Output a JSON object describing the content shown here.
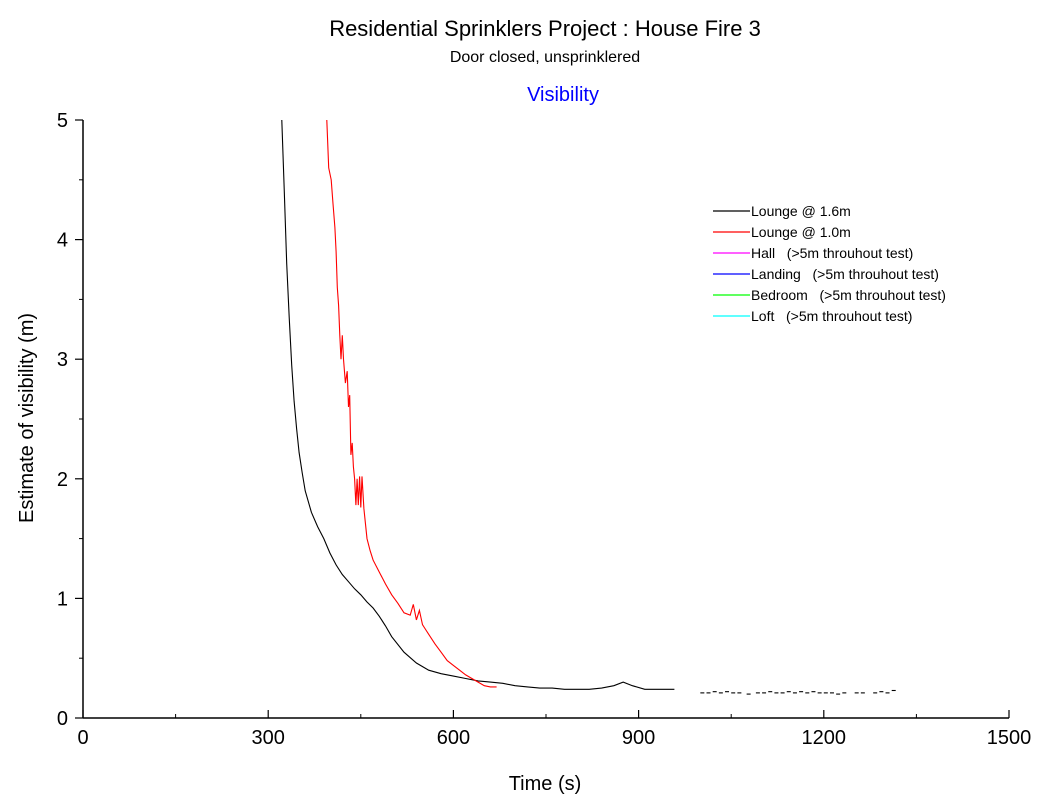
{
  "chart_data": {
    "type": "line",
    "title": "Residential Sprinklers Project : House Fire 3",
    "subtitle": "Door closed, unsprinklered",
    "panel_title": "Visibility",
    "panel_title_color": "#0000ff",
    "xlabel": "Time (s)",
    "ylabel": "Estimate of visibility (m)",
    "xlim": [
      0,
      1500
    ],
    "ylim": [
      0,
      5
    ],
    "x_ticks": [
      "0",
      "300",
      "600",
      "900",
      "1200",
      "1500"
    ],
    "y_ticks": [
      "0",
      "1",
      "2",
      "3",
      "4",
      "5"
    ],
    "grid": false,
    "legend_position": "top-right",
    "series": [
      {
        "name": "Lounge @ 1.6m",
        "color": "#000000",
        "x": [
          322,
          326,
          330,
          334,
          338,
          342,
          346,
          350,
          355,
          360,
          370,
          380,
          390,
          400,
          410,
          420,
          430,
          440,
          450,
          460,
          470,
          480,
          490,
          500,
          520,
          540,
          560,
          580,
          600,
          620,
          640,
          660,
          680,
          700,
          720,
          740,
          760,
          780,
          800,
          820,
          840,
          860,
          875,
          890,
          910,
          930,
          958
        ],
        "y": [
          5.0,
          4.4,
          3.8,
          3.35,
          2.95,
          2.65,
          2.42,
          2.22,
          2.05,
          1.9,
          1.72,
          1.6,
          1.5,
          1.38,
          1.28,
          1.2,
          1.14,
          1.08,
          1.03,
          0.97,
          0.92,
          0.85,
          0.77,
          0.68,
          0.55,
          0.46,
          0.4,
          0.37,
          0.35,
          0.33,
          0.31,
          0.3,
          0.29,
          0.27,
          0.26,
          0.25,
          0.25,
          0.24,
          0.24,
          0.24,
          0.25,
          0.27,
          0.3,
          0.27,
          0.24,
          0.24,
          0.24
        ]
      },
      {
        "name": "Lounge @ 1.0m",
        "color": "#ff0000",
        "x": [
          395,
          398,
          402,
          405,
          408,
          410,
          412,
          414,
          416,
          418,
          420,
          422,
          425,
          428,
          430,
          432,
          434,
          436,
          438,
          440,
          442,
          444,
          446,
          448,
          450,
          452,
          455,
          460,
          465,
          470,
          480,
          490,
          500,
          510,
          520,
          530,
          535,
          540,
          545,
          550,
          555,
          560,
          570,
          580,
          590,
          600,
          610,
          620,
          630,
          640,
          650,
          660,
          670
        ],
        "y": [
          5.0,
          4.6,
          4.5,
          4.3,
          4.1,
          3.9,
          3.6,
          3.45,
          3.2,
          3.0,
          3.2,
          3.0,
          2.8,
          2.9,
          2.6,
          2.7,
          2.2,
          2.3,
          2.1,
          2.0,
          1.78,
          2.0,
          1.78,
          2.02,
          1.76,
          2.02,
          1.75,
          1.5,
          1.4,
          1.32,
          1.22,
          1.12,
          1.03,
          0.96,
          0.88,
          0.86,
          0.95,
          0.82,
          0.9,
          0.78,
          0.74,
          0.7,
          0.62,
          0.55,
          0.48,
          0.44,
          0.4,
          0.36,
          0.33,
          0.3,
          0.27,
          0.26,
          0.26
        ]
      },
      {
        "name": "Hall   (>5m throuhout test)",
        "color": "#ff00ff",
        "x": [],
        "y": []
      },
      {
        "name": "Landing   (>5m throuhout test)",
        "color": "#0000ff",
        "x": [],
        "y": []
      },
      {
        "name": "Bedroom   (>5m throuhout test)",
        "color": "#00ff00",
        "x": [],
        "y": []
      },
      {
        "name": "Loft   (>5m throuhout test)",
        "color": "#00ffff",
        "x": [],
        "y": []
      }
    ],
    "sparse_segments": {
      "color": "#000000",
      "x": [
        1000,
        1010,
        1020,
        1030,
        1040,
        1050,
        1060,
        1075,
        1090,
        1100,
        1110,
        1120,
        1130,
        1140,
        1150,
        1160,
        1170,
        1180,
        1190,
        1200,
        1210,
        1220,
        1230,
        1250,
        1260,
        1280,
        1290,
        1300,
        1310
      ],
      "y": [
        0.21,
        0.21,
        0.22,
        0.21,
        0.22,
        0.21,
        0.21,
        0.2,
        0.21,
        0.21,
        0.22,
        0.21,
        0.21,
        0.22,
        0.21,
        0.22,
        0.21,
        0.22,
        0.21,
        0.21,
        0.21,
        0.2,
        0.21,
        0.21,
        0.21,
        0.21,
        0.22,
        0.21,
        0.23
      ]
    }
  }
}
